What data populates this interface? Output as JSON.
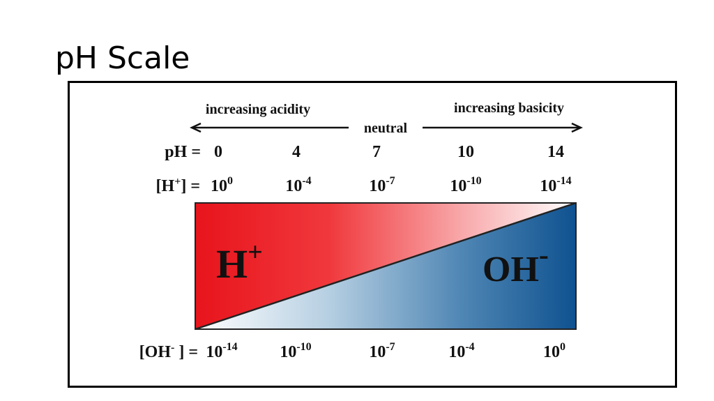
{
  "title": "pH Scale",
  "diagram": {
    "left_caption": "increasing acidity",
    "center_caption": "neutral",
    "right_caption": "increasing basicity",
    "ph_row": {
      "label": "pH =",
      "values": [
        "0",
        "4",
        "7",
        "10",
        "14"
      ]
    },
    "h_row": {
      "label": {
        "text": "[H",
        "sup": "+",
        "tail": "] ="
      },
      "values": [
        {
          "base": "10",
          "exp": "0"
        },
        {
          "base": "10",
          "exp": "-4"
        },
        {
          "base": "10",
          "exp": "-7"
        },
        {
          "base": "10",
          "exp": "-10"
        },
        {
          "base": "10",
          "exp": "-14"
        }
      ]
    },
    "oh_row": {
      "label": {
        "text": "[OH",
        "sup": "-",
        "tail": " ] ="
      },
      "values": [
        {
          "base": "10",
          "exp": "-14"
        },
        {
          "base": "10",
          "exp": "-10"
        },
        {
          "base": "10",
          "exp": "-7"
        },
        {
          "base": "10",
          "exp": "-4"
        },
        {
          "base": "10",
          "exp": "0"
        }
      ]
    },
    "h_region": {
      "text": "H",
      "sup": "+"
    },
    "oh_region": {
      "text": "OH",
      "sup": "-"
    }
  }
}
